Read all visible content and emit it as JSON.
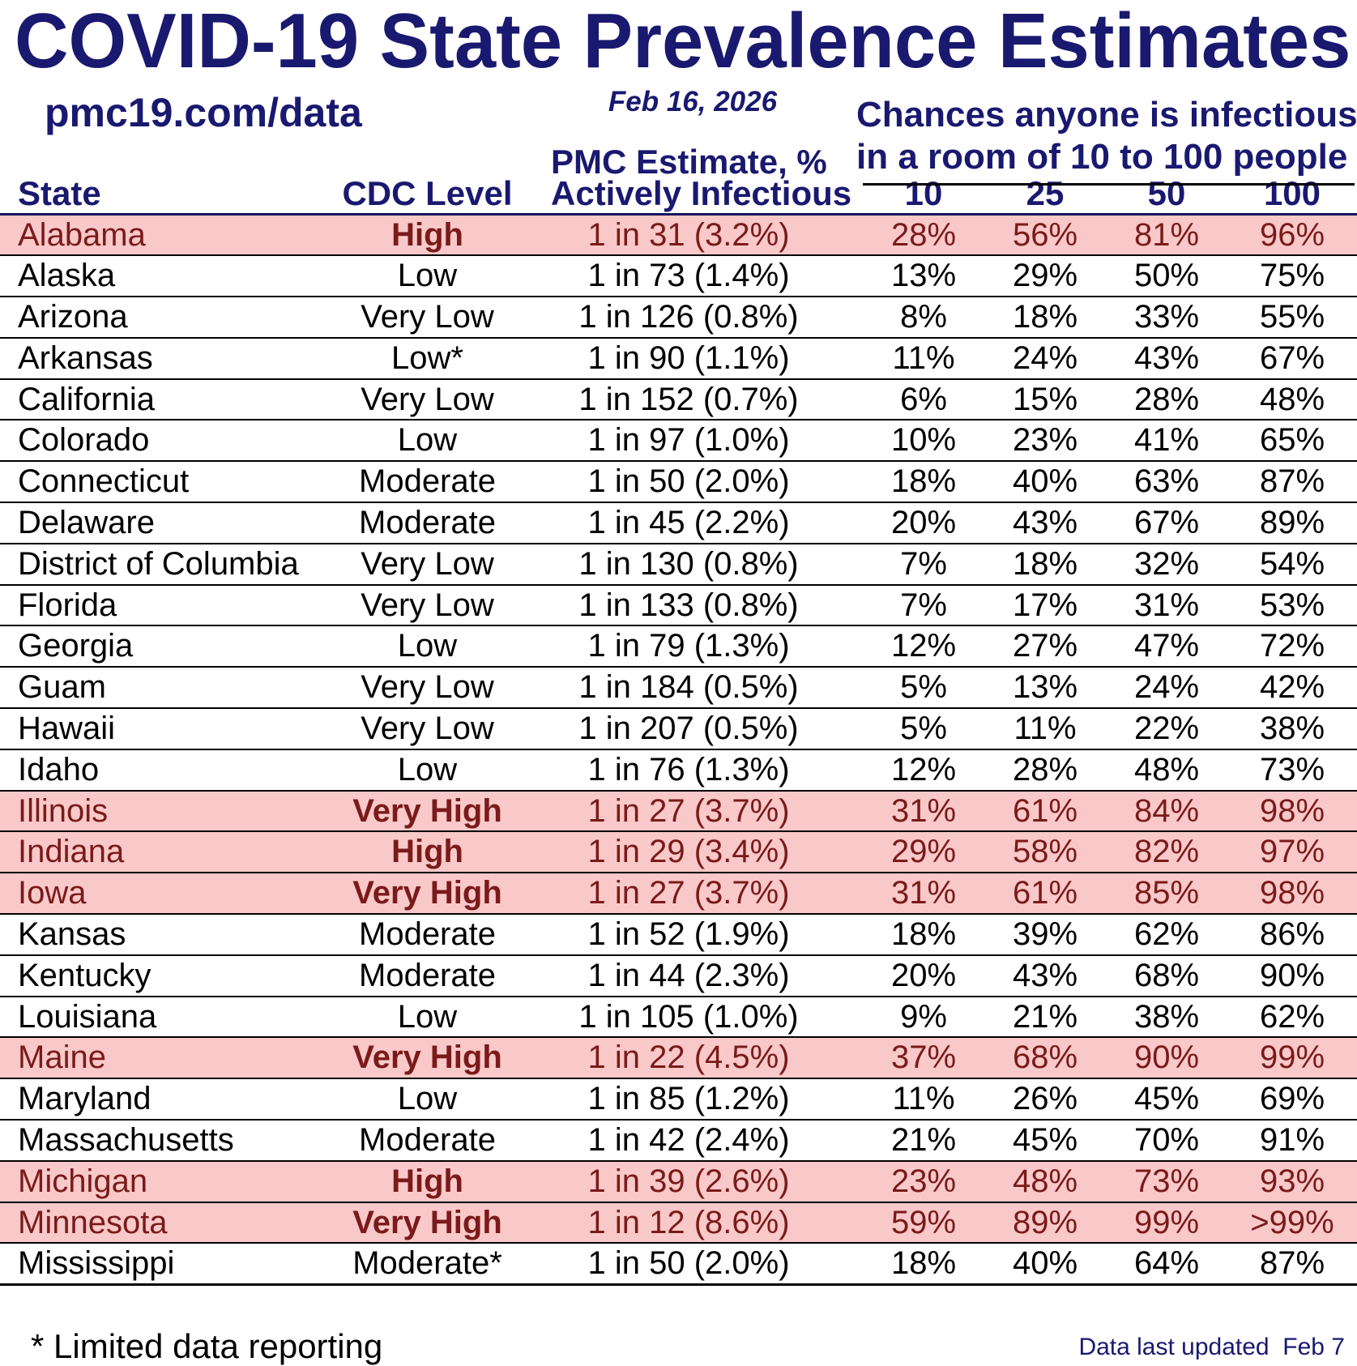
{
  "header": {
    "title": "COVID-19 State Prevalence Estimates",
    "site": "pmc19.com/data",
    "date": "Feb 16, 2026",
    "pmc_estimate_line": "PMC Estimate, %",
    "chances_line1": "Chances anyone is infectious",
    "chances_line2": "in a room of 10 to 100 people"
  },
  "columns": {
    "state": "State",
    "cdc_level": "CDC Level",
    "actively_infectious": "Actively Infectious",
    "room_sizes": [
      "10",
      "25",
      "50",
      "100"
    ]
  },
  "chart_data": {
    "type": "table",
    "title": "COVID-19 State Prevalence Estimates",
    "as_of_date": "Feb 16, 2026",
    "source_label": "pmc19.com/data",
    "columns": [
      "State",
      "CDC Level",
      "PMC Estimate, % Actively Infectious",
      "10",
      "25",
      "50",
      "100"
    ],
    "rows": [
      {
        "state": "Alabama",
        "cdc_level": "High",
        "pmc_estimate": "1 in 31 (3.2%)",
        "chance_10": "28%",
        "chance_25": "56%",
        "chance_50": "81%",
        "chance_100": "96%",
        "highlight": true
      },
      {
        "state": "Alaska",
        "cdc_level": "Low",
        "pmc_estimate": "1 in 73 (1.4%)",
        "chance_10": "13%",
        "chance_25": "29%",
        "chance_50": "50%",
        "chance_100": "75%",
        "highlight": false
      },
      {
        "state": "Arizona",
        "cdc_level": "Very Low",
        "pmc_estimate": "1 in 126 (0.8%)",
        "chance_10": "8%",
        "chance_25": "18%",
        "chance_50": "33%",
        "chance_100": "55%",
        "highlight": false
      },
      {
        "state": "Arkansas",
        "cdc_level": "Low*",
        "pmc_estimate": "1 in 90 (1.1%)",
        "chance_10": "11%",
        "chance_25": "24%",
        "chance_50": "43%",
        "chance_100": "67%",
        "highlight": false
      },
      {
        "state": "California",
        "cdc_level": "Very Low",
        "pmc_estimate": "1 in 152 (0.7%)",
        "chance_10": "6%",
        "chance_25": "15%",
        "chance_50": "28%",
        "chance_100": "48%",
        "highlight": false
      },
      {
        "state": "Colorado",
        "cdc_level": "Low",
        "pmc_estimate": "1 in 97 (1.0%)",
        "chance_10": "10%",
        "chance_25": "23%",
        "chance_50": "41%",
        "chance_100": "65%",
        "highlight": false
      },
      {
        "state": "Connecticut",
        "cdc_level": "Moderate",
        "pmc_estimate": "1 in 50 (2.0%)",
        "chance_10": "18%",
        "chance_25": "40%",
        "chance_50": "63%",
        "chance_100": "87%",
        "highlight": false
      },
      {
        "state": "Delaware",
        "cdc_level": "Moderate",
        "pmc_estimate": "1 in 45 (2.2%)",
        "chance_10": "20%",
        "chance_25": "43%",
        "chance_50": "67%",
        "chance_100": "89%",
        "highlight": false
      },
      {
        "state": "District of Columbia",
        "cdc_level": "Very Low",
        "pmc_estimate": "1 in 130 (0.8%)",
        "chance_10": "7%",
        "chance_25": "18%",
        "chance_50": "32%",
        "chance_100": "54%",
        "highlight": false
      },
      {
        "state": "Florida",
        "cdc_level": "Very Low",
        "pmc_estimate": "1 in 133 (0.8%)",
        "chance_10": "7%",
        "chance_25": "17%",
        "chance_50": "31%",
        "chance_100": "53%",
        "highlight": false
      },
      {
        "state": "Georgia",
        "cdc_level": "Low",
        "pmc_estimate": "1 in 79 (1.3%)",
        "chance_10": "12%",
        "chance_25": "27%",
        "chance_50": "47%",
        "chance_100": "72%",
        "highlight": false
      },
      {
        "state": "Guam",
        "cdc_level": "Very Low",
        "pmc_estimate": "1 in 184 (0.5%)",
        "chance_10": "5%",
        "chance_25": "13%",
        "chance_50": "24%",
        "chance_100": "42%",
        "highlight": false
      },
      {
        "state": "Hawaii",
        "cdc_level": "Very Low",
        "pmc_estimate": "1 in 207 (0.5%)",
        "chance_10": "5%",
        "chance_25": "11%",
        "chance_50": "22%",
        "chance_100": "38%",
        "highlight": false
      },
      {
        "state": "Idaho",
        "cdc_level": "Low",
        "pmc_estimate": "1 in 76 (1.3%)",
        "chance_10": "12%",
        "chance_25": "28%",
        "chance_50": "48%",
        "chance_100": "73%",
        "highlight": false
      },
      {
        "state": "Illinois",
        "cdc_level": "Very High",
        "pmc_estimate": "1 in 27 (3.7%)",
        "chance_10": "31%",
        "chance_25": "61%",
        "chance_50": "84%",
        "chance_100": "98%",
        "highlight": true
      },
      {
        "state": "Indiana",
        "cdc_level": "High",
        "pmc_estimate": "1 in 29 (3.4%)",
        "chance_10": "29%",
        "chance_25": "58%",
        "chance_50": "82%",
        "chance_100": "97%",
        "highlight": true
      },
      {
        "state": "Iowa",
        "cdc_level": "Very High",
        "pmc_estimate": "1 in 27 (3.7%)",
        "chance_10": "31%",
        "chance_25": "61%",
        "chance_50": "85%",
        "chance_100": "98%",
        "highlight": true
      },
      {
        "state": "Kansas",
        "cdc_level": "Moderate",
        "pmc_estimate": "1 in 52 (1.9%)",
        "chance_10": "18%",
        "chance_25": "39%",
        "chance_50": "62%",
        "chance_100": "86%",
        "highlight": false
      },
      {
        "state": "Kentucky",
        "cdc_level": "Moderate",
        "pmc_estimate": "1 in 44 (2.3%)",
        "chance_10": "20%",
        "chance_25": "43%",
        "chance_50": "68%",
        "chance_100": "90%",
        "highlight": false
      },
      {
        "state": "Louisiana",
        "cdc_level": "Low",
        "pmc_estimate": "1 in 105 (1.0%)",
        "chance_10": "9%",
        "chance_25": "21%",
        "chance_50": "38%",
        "chance_100": "62%",
        "highlight": false
      },
      {
        "state": "Maine",
        "cdc_level": "Very High",
        "pmc_estimate": "1 in 22 (4.5%)",
        "chance_10": "37%",
        "chance_25": "68%",
        "chance_50": "90%",
        "chance_100": "99%",
        "highlight": true
      },
      {
        "state": "Maryland",
        "cdc_level": "Low",
        "pmc_estimate": "1 in 85 (1.2%)",
        "chance_10": "11%",
        "chance_25": "26%",
        "chance_50": "45%",
        "chance_100": "69%",
        "highlight": false
      },
      {
        "state": "Massachusetts",
        "cdc_level": "Moderate",
        "pmc_estimate": "1 in 42 (2.4%)",
        "chance_10": "21%",
        "chance_25": "45%",
        "chance_50": "70%",
        "chance_100": "91%",
        "highlight": false
      },
      {
        "state": "Michigan",
        "cdc_level": "High",
        "pmc_estimate": "1 in 39 (2.6%)",
        "chance_10": "23%",
        "chance_25": "48%",
        "chance_50": "73%",
        "chance_100": "93%",
        "highlight": true
      },
      {
        "state": "Minnesota",
        "cdc_level": "Very High",
        "pmc_estimate": "1 in 12 (8.6%)",
        "chance_10": "59%",
        "chance_25": "89%",
        "chance_50": "99%",
        "chance_100": ">99%",
        "highlight": true
      },
      {
        "state": "Mississippi",
        "cdc_level": "Moderate*",
        "pmc_estimate": "1 in 50 (2.0%)",
        "chance_10": "18%",
        "chance_25": "40%",
        "chance_50": "64%",
        "chance_100": "87%",
        "highlight": false
      }
    ]
  },
  "footer": {
    "note": "* Limited data reporting",
    "updated": "Data last updated  Feb 7"
  },
  "colors": {
    "navy": "#191970",
    "maroon": "#7b1a1a",
    "highlight_pink": "#f9c9c9",
    "row_line": "#000000"
  }
}
